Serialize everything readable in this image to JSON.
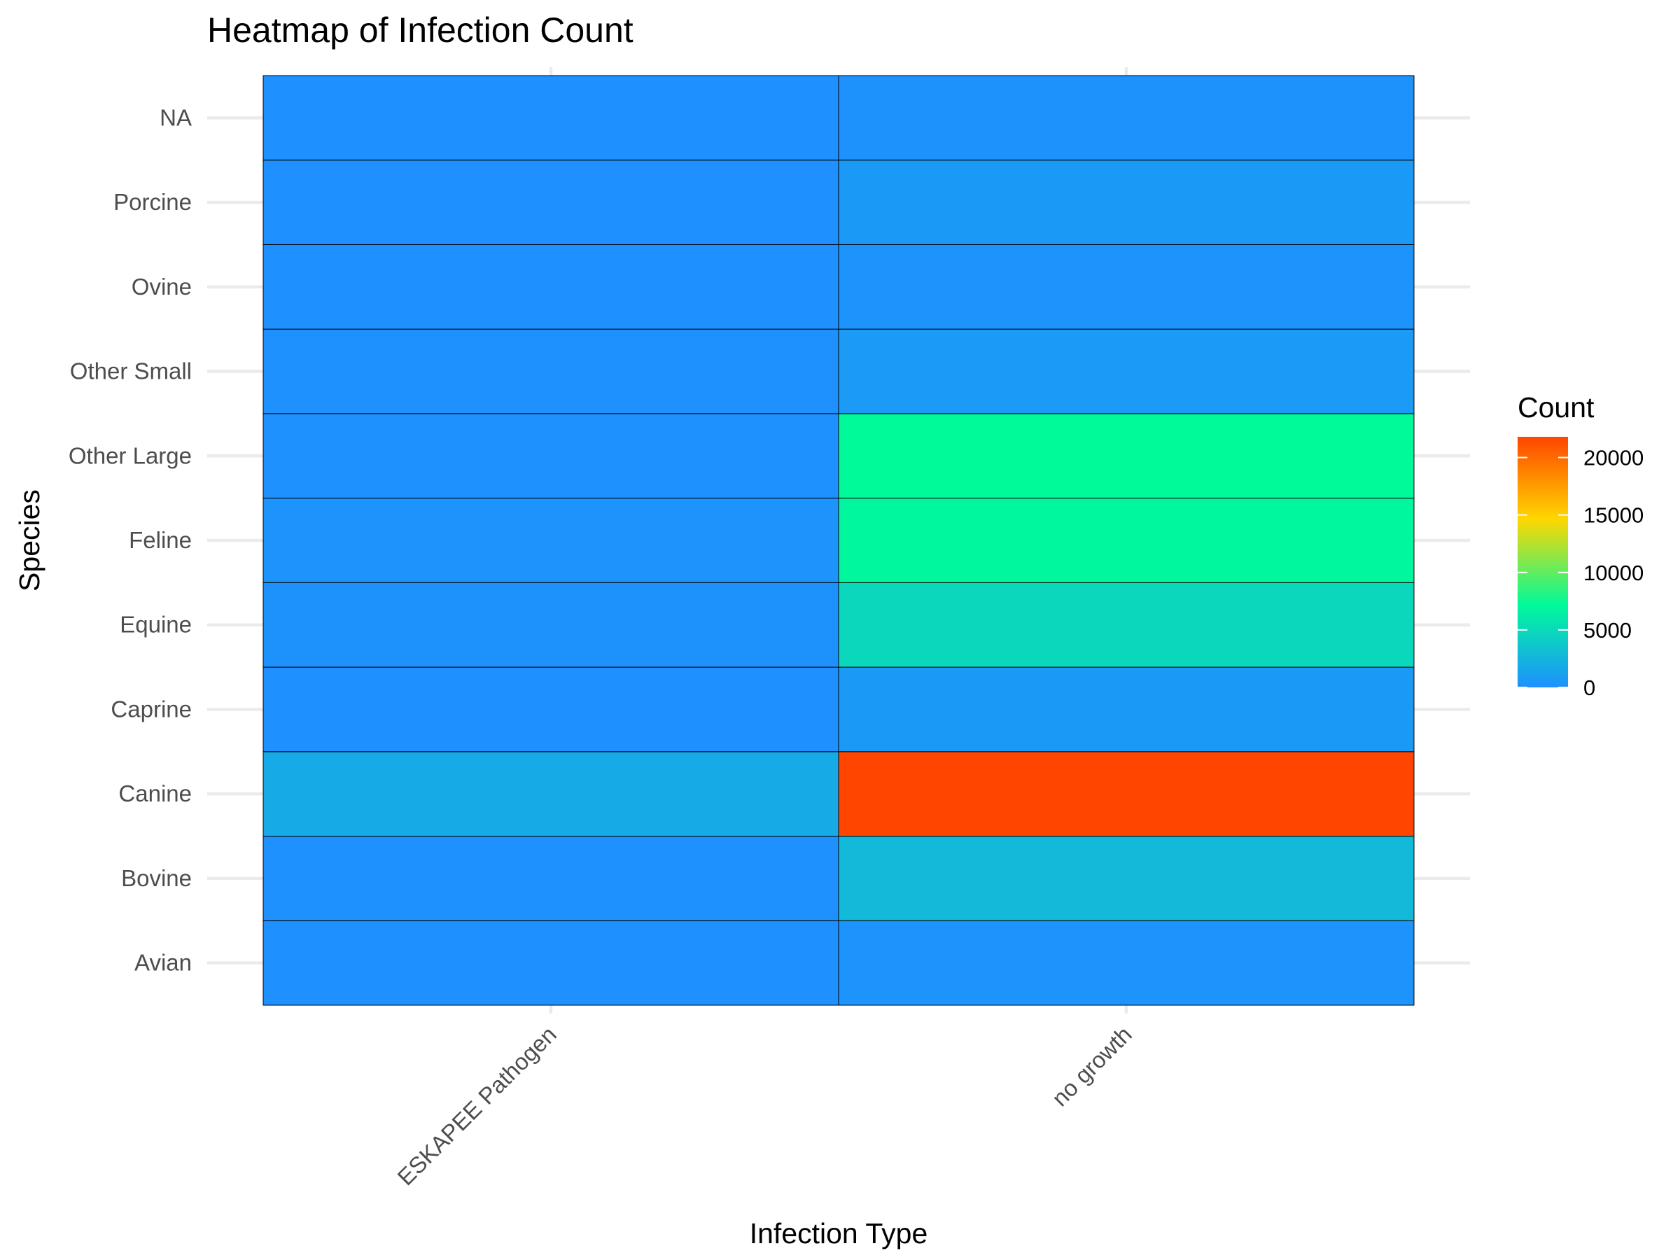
{
  "chart_data": {
    "type": "heatmap",
    "title": "Heatmap of Infection Count",
    "xlabel": "Infection Type",
    "ylabel": "Species",
    "x": [
      "ESKAPEE Pathogen",
      "no growth"
    ],
    "y": [
      "Avian",
      "Bovine",
      "Canine",
      "Caprine",
      "Equine",
      "Feline",
      "Other Large",
      "Other Small",
      "Ovine",
      "Porcine",
      "NA"
    ],
    "values": [
      [
        30,
        300
      ],
      [
        40,
        2800
      ],
      [
        1800,
        21800
      ],
      [
        20,
        700
      ],
      [
        120,
        4800
      ],
      [
        250,
        7000
      ],
      [
        90,
        7200
      ],
      [
        50,
        650
      ],
      [
        15,
        250
      ],
      [
        20,
        600
      ],
      [
        5,
        120
      ]
    ],
    "legend": {
      "title": "Count",
      "position": "right",
      "breaks": [
        0,
        5000,
        10000,
        15000,
        20000
      ],
      "break_labels": [
        "0",
        "5000",
        "10000",
        "15000",
        "20000"
      ],
      "range": [
        0,
        21800
      ]
    },
    "color_scale": {
      "stops": [
        {
          "at": 0.0,
          "color": "#1E90FF"
        },
        {
          "at": 0.33,
          "color": "#00FA9A"
        },
        {
          "at": 0.67,
          "color": "#FFD700"
        },
        {
          "at": 1.0,
          "color": "#FF4500"
        }
      ]
    },
    "grid": true
  }
}
